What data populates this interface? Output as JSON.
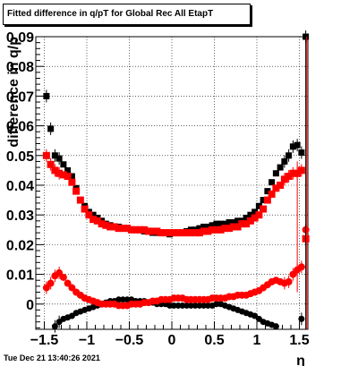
{
  "title": "Fitted difference in q/pT for Global Rec All EtapT",
  "timestamp": "Tue Dec 21 13:40:26 2021",
  "chart_data": {
    "type": "scatter",
    "title": "Fitted difference in q/pT for Global Rec All EtapT",
    "xlabel": "η",
    "ylabel": "difference in q/p",
    "xlim": [
      -1.6,
      1.6
    ],
    "ylim": [
      -0.0085,
      0.09
    ],
    "grid": true,
    "x_ticks": [
      -1.5,
      -1,
      -0.5,
      0,
      0.5,
      1,
      1.5
    ],
    "x_tick_labels": [
      "−1.5",
      "−1",
      "−0.5",
      "0",
      "0.5",
      "1",
      "1.5"
    ],
    "y_ticks": [
      0,
      0.01,
      0.02,
      0.03,
      0.04,
      0.05,
      0.06,
      0.07,
      0.08,
      0.09
    ],
    "y_tick_labels": [
      "0",
      "0.01",
      "0.02",
      "0.03",
      "0.04",
      "0.05",
      "0.06",
      "0.07",
      "0.08",
      "0.09"
    ],
    "series": [
      {
        "color": "#000000",
        "x": [
          -1.475,
          -1.425,
          -1.375,
          -1.325,
          -1.275,
          -1.225,
          -1.175,
          -1.125,
          -1.075,
          -1.025,
          -0.975,
          -0.925,
          -0.875,
          -0.825,
          -0.775,
          -0.725,
          -0.675,
          -0.625,
          -0.575,
          -0.525,
          -0.475,
          -0.425,
          -0.375,
          -0.325,
          -0.275,
          -0.225,
          -0.175,
          -0.125,
          -0.075,
          -0.025,
          0.025,
          0.075,
          0.125,
          0.175,
          0.225,
          0.275,
          0.325,
          0.375,
          0.425,
          0.475,
          0.525,
          0.575,
          0.625,
          0.675,
          0.725,
          0.775,
          0.825,
          0.875,
          0.925,
          0.975,
          1.025,
          1.075,
          1.125,
          1.175,
          1.225,
          1.275,
          1.325,
          1.375,
          1.425,
          1.475,
          1.525,
          1.575
        ],
        "y": [
          0.07,
          0.059,
          0.05,
          0.049,
          0.047,
          0.045,
          0.043,
          0.039,
          0.035,
          0.033,
          0.031,
          0.03,
          0.029,
          0.028,
          0.027,
          0.0265,
          0.026,
          0.026,
          0.0255,
          0.0255,
          0.025,
          0.025,
          0.025,
          0.0245,
          0.0245,
          0.024,
          0.024,
          0.024,
          0.024,
          0.0235,
          0.024,
          0.024,
          0.024,
          0.0245,
          0.025,
          0.025,
          0.0255,
          0.026,
          0.026,
          0.0265,
          0.027,
          0.027,
          0.027,
          0.0275,
          0.0275,
          0.028,
          0.028,
          0.029,
          0.03,
          0.031,
          0.033,
          0.035,
          0.038,
          0.041,
          0.044,
          0.046,
          0.048,
          0.05,
          0.053,
          0.0535,
          0.051,
          0.09
        ]
      },
      {
        "color": "#ff0000",
        "x": [
          -1.475,
          -1.425,
          -1.375,
          -1.325,
          -1.275,
          -1.225,
          -1.175,
          -1.125,
          -1.075,
          -1.025,
          -0.975,
          -0.925,
          -0.875,
          -0.825,
          -0.775,
          -0.725,
          -0.675,
          -0.625,
          -0.575,
          -0.525,
          -0.475,
          -0.425,
          -0.375,
          -0.325,
          -0.275,
          -0.225,
          -0.175,
          -0.125,
          -0.075,
          -0.025,
          0.025,
          0.075,
          0.125,
          0.175,
          0.225,
          0.275,
          0.325,
          0.375,
          0.425,
          0.475,
          0.525,
          0.575,
          0.625,
          0.675,
          0.725,
          0.775,
          0.825,
          0.875,
          0.925,
          0.975,
          1.025,
          1.075,
          1.125,
          1.175,
          1.225,
          1.275,
          1.325,
          1.375,
          1.425,
          1.475,
          1.525,
          1.575
        ],
        "y": [
          0.05,
          0.047,
          0.045,
          0.044,
          0.0435,
          0.043,
          0.041,
          0.038,
          0.035,
          0.032,
          0.03,
          0.0285,
          0.028,
          0.027,
          0.0265,
          0.026,
          0.026,
          0.0255,
          0.0255,
          0.0255,
          0.025,
          0.025,
          0.025,
          0.025,
          0.0245,
          0.0245,
          0.0245,
          0.024,
          0.024,
          0.024,
          0.024,
          0.024,
          0.024,
          0.024,
          0.024,
          0.024,
          0.024,
          0.0245,
          0.0245,
          0.025,
          0.025,
          0.025,
          0.0255,
          0.0255,
          0.026,
          0.026,
          0.027,
          0.027,
          0.028,
          0.029,
          0.03,
          0.032,
          0.035,
          0.037,
          0.039,
          0.04,
          0.042,
          0.043,
          0.044,
          0.044,
          0.045,
          0.022
        ]
      },
      {
        "color": "#000000",
        "x": [
          -1.375,
          -1.325,
          -1.275,
          -1.225,
          -1.175,
          -1.125,
          -1.075,
          -1.025,
          -0.975,
          -0.925,
          -0.875,
          -0.825,
          -0.775,
          -0.725,
          -0.675,
          -0.625,
          -0.575,
          -0.525,
          -0.475,
          -0.425,
          -0.375,
          -0.325,
          -0.275,
          -0.225,
          -0.175,
          -0.125,
          -0.075,
          -0.025,
          0.025,
          0.075,
          0.125,
          0.175,
          0.225,
          0.275,
          0.325,
          0.375,
          0.425,
          0.475,
          0.525,
          0.575,
          0.625,
          0.675,
          0.725,
          0.775,
          0.825,
          0.875,
          0.925,
          0.975,
          1.025,
          1.075,
          1.125,
          1.175,
          1.225,
          1.525
        ],
        "y": [
          -0.0075,
          -0.006,
          -0.005,
          -0.0045,
          -0.004,
          -0.003,
          -0.0025,
          -0.002,
          -0.0015,
          -0.001,
          -0.0005,
          0,
          0.0005,
          0.001,
          0.001,
          0.0015,
          0.0015,
          0.0015,
          0.0015,
          0.001,
          0.001,
          0.001,
          0.0005,
          0.0005,
          0,
          0,
          0,
          -0.0005,
          -0.0005,
          -0.0005,
          -0.0005,
          -0.0005,
          -0.0005,
          -0.0005,
          -0.0005,
          -0.0005,
          -0.0005,
          -0.0005,
          0,
          0,
          -0.0005,
          -0.001,
          -0.0015,
          -0.002,
          -0.0025,
          -0.003,
          -0.0035,
          -0.004,
          -0.005,
          -0.006,
          -0.0065,
          -0.007,
          -0.0075,
          -0.005
        ]
      },
      {
        "color": "#ff0000",
        "x": [
          -1.475,
          -1.425,
          -1.375,
          -1.325,
          -1.275,
          -1.225,
          -1.175,
          -1.125,
          -1.075,
          -1.025,
          -0.975,
          -0.925,
          -0.875,
          -0.825,
          -0.775,
          -0.725,
          -0.675,
          -0.625,
          -0.575,
          -0.525,
          -0.475,
          -0.425,
          -0.375,
          -0.325,
          -0.275,
          -0.225,
          -0.175,
          -0.125,
          -0.075,
          -0.025,
          0.025,
          0.075,
          0.125,
          0.175,
          0.225,
          0.275,
          0.325,
          0.375,
          0.425,
          0.475,
          0.525,
          0.575,
          0.625,
          0.675,
          0.725,
          0.775,
          0.825,
          0.875,
          0.925,
          0.975,
          1.025,
          1.075,
          1.125,
          1.175,
          1.225,
          1.275,
          1.325,
          1.375,
          1.425,
          1.475,
          1.525,
          1.575
        ],
        "y": [
          0.0055,
          0.007,
          0.0095,
          0.0105,
          0.009,
          0.007,
          0.0055,
          0.004,
          0.003,
          0.002,
          0.0015,
          0.001,
          0.0005,
          0,
          0,
          0,
          0,
          -0.0005,
          -0.0005,
          -0.0005,
          0,
          0,
          0,
          0.0005,
          0.0005,
          0.001,
          0.001,
          0.0015,
          0.0015,
          0.0015,
          0.002,
          0.002,
          0.002,
          0.0015,
          0.0015,
          0.0015,
          0.0015,
          0.0015,
          0.0015,
          0.002,
          0.002,
          0.002,
          0.002,
          0.0025,
          0.0025,
          0.003,
          0.003,
          0.003,
          0.0035,
          0.004,
          0.0045,
          0.0055,
          0.0065,
          0.0075,
          0.008,
          0.0075,
          0.007,
          0.0075,
          0.01,
          0.0115,
          0.0125,
          0.025
        ]
      }
    ]
  }
}
